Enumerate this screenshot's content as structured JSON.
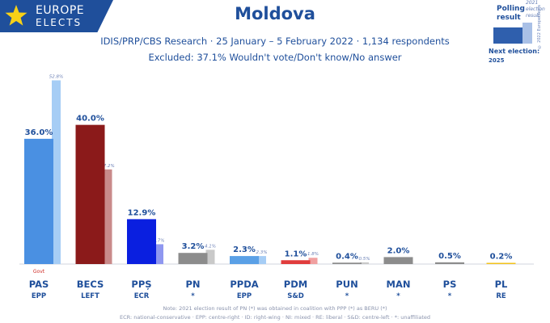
{
  "brand": {
    "line1": "EUROPE",
    "line2": "ELECTS",
    "credit": "© 2022 EuropeElects"
  },
  "title": "Moldova",
  "subtitle_1": "IDIS/PRP/CBS Research · 25 January – 5 February 2022 · 1,134 respondents",
  "subtitle_2": "Excluded: 37.1% Wouldn't vote/Don't know/No answer",
  "legend": {
    "polling_label": "Polling result",
    "previous_label": "2021 election result",
    "next_election_label": "Next election:",
    "next_election_year": "2025"
  },
  "footnote_1": "Note: 2021 election result of PN (*) was obtained in coalition with PPP (*) as BERU (*)",
  "footnote_2": "ECR: national-conservative · EPP: centre-right · ID: right-wing · NI: mixed · RE: liberal · S&D: centre-left · *: unaffiliated",
  "colors": {
    "accent": "#1f4f9b"
  },
  "chart_data": {
    "type": "bar",
    "ylim": [
      0,
      55
    ],
    "categories": [
      "PAS",
      "BECS",
      "PPȘ",
      "PN",
      "PPDA",
      "PDM",
      "PUN",
      "MAN",
      "PS",
      "PL"
    ],
    "groups": [
      "EPP",
      "LEFT",
      "ECR",
      "*",
      "EPP",
      "S&D",
      "*",
      "*",
      "*",
      "RE"
    ],
    "series": [
      {
        "name": "Polling result",
        "values": [
          36.0,
          40.0,
          12.9,
          3.2,
          2.3,
          1.1,
          0.4,
          2.0,
          0.5,
          0.2
        ],
        "labels": [
          "36.0%",
          "40.0%",
          "12.9%",
          "3.2%",
          "2.3%",
          "1.1%",
          "0.4%",
          "2.0%",
          "0.5%",
          "0.2%"
        ]
      },
      {
        "name": "2021 election result",
        "values": [
          52.8,
          27.2,
          5.7,
          4.1,
          2.3,
          1.8,
          0.5,
          null,
          null,
          null
        ],
        "labels": [
          "52.8%",
          "27.2%",
          "5.7%",
          "4.1%",
          "2.3%",
          "1.8%",
          "0.5%",
          null,
          null,
          null
        ]
      }
    ],
    "bar_colors": [
      "#4a90e2",
      "#8b1a1a",
      "#0a1fe0",
      "#8c8c8c",
      "#5aa0e6",
      "#e03c3c",
      "#8c8c8c",
      "#8c8c8c",
      "#8c8c8c",
      "#f2c21b"
    ],
    "prev_colors": [
      "#a6cdf5",
      "#c98a8a",
      "#8f97f0",
      "#c9c9c9",
      "#a6cdf5",
      "#f0a0a0",
      "#c9c9c9",
      null,
      null,
      null
    ],
    "annotations": [
      {
        "category": "PAS",
        "text": "Govt",
        "color": "#d0302a"
      }
    ]
  }
}
